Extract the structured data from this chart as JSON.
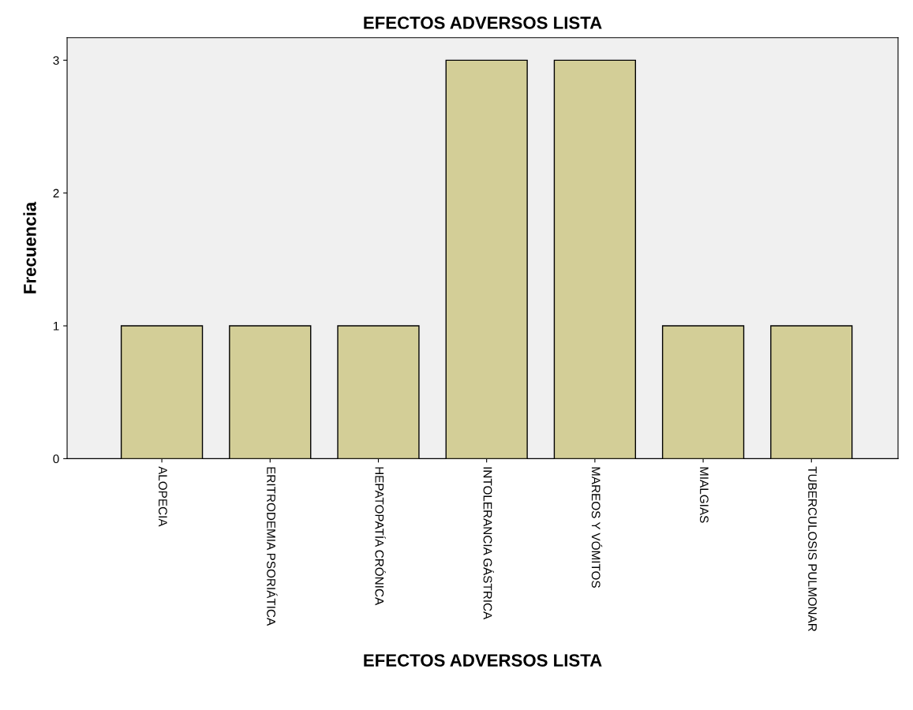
{
  "chart_data": {
    "type": "bar",
    "title": "EFECTOS ADVERSOS LISTA",
    "xlabel": "EFECTOS ADVERSOS LISTA",
    "ylabel": "Frecuencia",
    "categories": [
      "ALOPECIA",
      "ERITRODEMIA PSORIÁTICA",
      "HEPATOPATÍA CRÓNICA",
      "INTOLERANCIA GÁSTRICA",
      "MAREOS Y VÓMITOS",
      "MIALGIAS",
      "TUBERCULOSIS PULMONAR"
    ],
    "values": [
      1,
      1,
      1,
      3,
      3,
      1,
      1
    ],
    "color": "#d3ce97",
    "ylim": [
      0,
      3.17
    ],
    "yticks": [
      0,
      1,
      2,
      3
    ],
    "grid": false
  }
}
